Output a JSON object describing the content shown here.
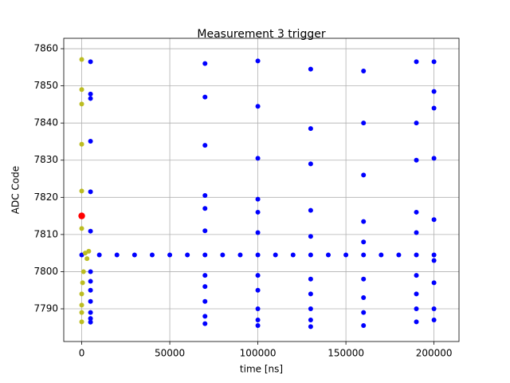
{
  "chart_data": {
    "type": "scatter",
    "title": "Measurement 3 trigger",
    "x_label": "time [ns]",
    "y_label": "ADC Code",
    "xlim": [
      -10200,
      214200
    ],
    "ylim": [
      7781.2,
      7862.8
    ],
    "xticks": [
      0,
      50000,
      100000,
      150000,
      200000
    ],
    "yticks": [
      7790,
      7800,
      7810,
      7820,
      7830,
      7840,
      7850,
      7860
    ],
    "grid": true,
    "series": [
      {
        "color": "#0000ff",
        "x": [
          5000,
          5000,
          5000,
          5000,
          5000,
          5000,
          5000,
          5000,
          5000,
          5000,
          5000,
          5000,
          5000,
          0,
          10000,
          20000,
          30000,
          40000,
          50000,
          60000,
          70000,
          80000,
          90000,
          100000,
          110000,
          120000,
          130000,
          140000,
          150000,
          160000,
          170000,
          180000,
          190000,
          200000,
          70000,
          70000,
          70000,
          70000,
          70000,
          70000,
          70000,
          70000,
          70000,
          70000,
          70000,
          100000,
          100000,
          100000,
          100000,
          100000,
          100000,
          100000,
          100000,
          100000,
          100000,
          100000,
          130000,
          130000,
          130000,
          130000,
          130000,
          130000,
          130000,
          130000,
          130000,
          130000,
          160000,
          160000,
          160000,
          160000,
          160000,
          160000,
          160000,
          160000,
          160000,
          190000,
          190000,
          190000,
          190000,
          190000,
          190000,
          190000,
          190000,
          190000,
          200000,
          200000,
          200000,
          200000,
          200000,
          200000,
          200000,
          200000,
          200000
        ],
        "values": [
          7856.5,
          7847.8,
          7846.6,
          7835.1,
          7821.5,
          7810.9,
          7800,
          7797.4,
          7795,
          7792,
          7789,
          7787.4,
          7786.4,
          7804.5,
          7804.5,
          7804.5,
          7804.5,
          7804.5,
          7804.5,
          7804.5,
          7804.5,
          7804.5,
          7804.5,
          7804.5,
          7804.5,
          7804.5,
          7804.5,
          7804.5,
          7804.5,
          7804.5,
          7804.5,
          7804.5,
          7804.5,
          7804.5,
          7856,
          7847,
          7834,
          7820.5,
          7817,
          7811,
          7799,
          7796,
          7792,
          7788,
          7786,
          7856.7,
          7844.5,
          7830.5,
          7819.5,
          7816,
          7810.5,
          7799,
          7795,
          7790,
          7787,
          7785.5,
          7854.5,
          7838.5,
          7829,
          7816.5,
          7809.5,
          7798,
          7794,
          7790,
          7787,
          7785.2,
          7854,
          7840,
          7826,
          7813.5,
          7808,
          7798,
          7793,
          7789,
          7785.5,
          7856.5,
          7840,
          7830,
          7816,
          7810.5,
          7799,
          7794,
          7790,
          7786.5,
          7856.5,
          7848.5,
          7844,
          7830.5,
          7814,
          7803,
          7797,
          7790,
          7787
        ]
      },
      {
        "color": "#bcbd22",
        "x": [
          0,
          0,
          0,
          0,
          0,
          0,
          2000,
          3000,
          4000,
          1000,
          500,
          0,
          0,
          0,
          0
        ],
        "values": [
          7857.1,
          7849,
          7845.1,
          7834.3,
          7821.7,
          7811.6,
          7805,
          7803.5,
          7805.5,
          7800,
          7797,
          7794,
          7791,
          7789,
          7786.5
        ]
      },
      {
        "color": "#ff0000",
        "x": [
          0
        ],
        "values": [
          7815
        ]
      }
    ]
  }
}
